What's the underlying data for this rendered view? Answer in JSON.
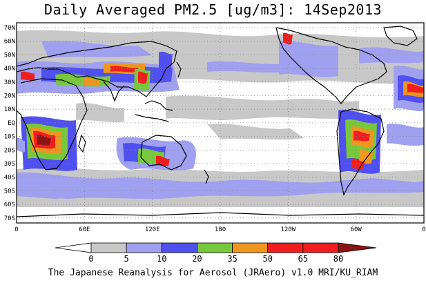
{
  "title": "Daily Averaged PM2.5 [ug/m3]: 14Sep2013",
  "footer": "The Japanese Reanalysis for Aerosol (JRAero) v1.0 MRI/KU_RIAM",
  "lat_labels": [
    "70N",
    "60N",
    "50N",
    "40N",
    "30N",
    "20N",
    "10N",
    "EQ",
    "10S",
    "20S",
    "30S",
    "40S",
    "50S",
    "60S",
    "70S"
  ],
  "lon_labels": [
    "0",
    "60E",
    "120E",
    "180",
    "120W",
    "60W",
    "0"
  ],
  "colorbar": {
    "ticks": [
      "0",
      "5",
      "10",
      "20",
      "35",
      "50",
      "65",
      "80"
    ],
    "colors": [
      "#ffffff",
      "#c8c8c8",
      "#a0a0f0",
      "#5050f0",
      "#78c83c",
      "#f0961e",
      "#f01e1e",
      "#8c1414"
    ]
  }
}
